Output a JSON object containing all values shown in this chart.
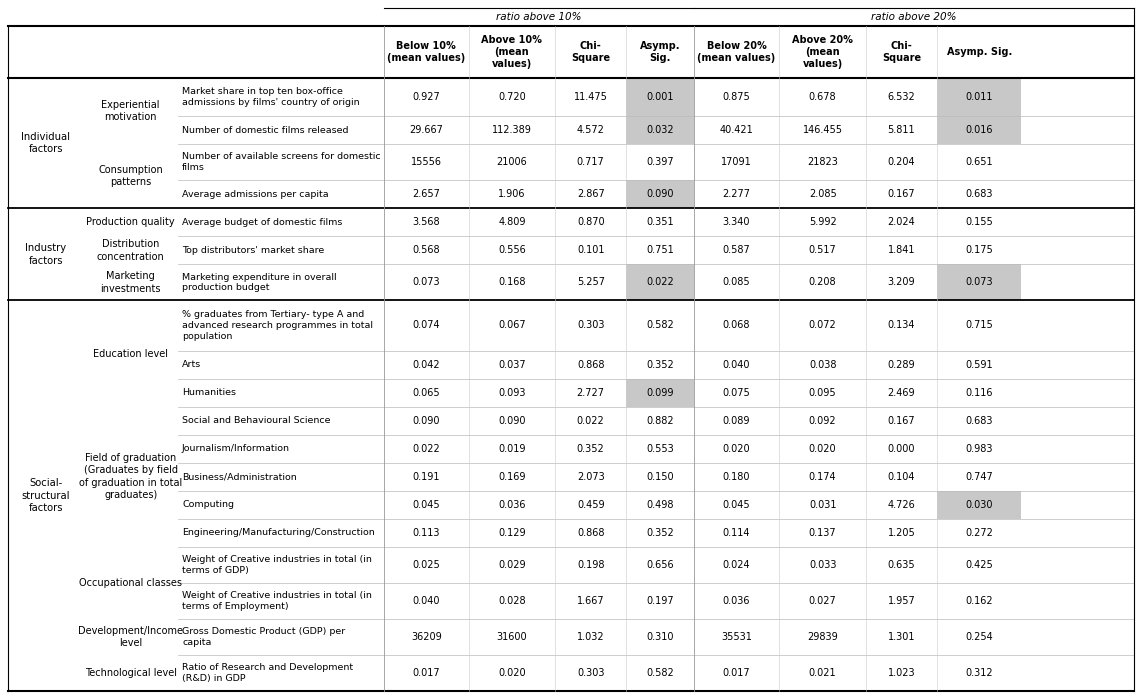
{
  "col_headers": [
    "Below 10%\n(mean values)",
    "Above 10%\n(mean\nvalues)",
    "Chi-\nSquare",
    "Asymp.\nSig.",
    "Below 20%\n(mean values)",
    "Above 20%\n(mean\nvalues)",
    "Chi-\nSquare",
    "Asymp. Sig."
  ],
  "rows": [
    {
      "factor": "Individual\nfactors",
      "sub_factor": "Experiential\nmotivation",
      "description": "Market share in top ten box-office\nadmissions by films' country of origin",
      "values": [
        "0.927",
        "0.720",
        "11.475",
        "0.001",
        "0.875",
        "0.678",
        "6.532",
        "0.011"
      ],
      "highlight": [
        3,
        7
      ],
      "thick_top": true
    },
    {
      "factor": "",
      "sub_factor": "",
      "description": "Number of domestic films released",
      "values": [
        "29.667",
        "112.389",
        "4.572",
        "0.032",
        "40.421",
        "146.455",
        "5.811",
        "0.016"
      ],
      "highlight": [
        3,
        7
      ],
      "thick_top": false
    },
    {
      "factor": "",
      "sub_factor": "Consumption\npatterns",
      "description": "Number of available screens for domestic\nfilms",
      "values": [
        "15556",
        "21006",
        "0.717",
        "0.397",
        "17091",
        "21823",
        "0.204",
        "0.651"
      ],
      "highlight": [],
      "thick_top": false
    },
    {
      "factor": "",
      "sub_factor": "",
      "description": "Average admissions per capita",
      "values": [
        "2.657",
        "1.906",
        "2.867",
        "0.090",
        "2.277",
        "2.085",
        "0.167",
        "0.683"
      ],
      "highlight": [
        3
      ],
      "thick_top": false
    },
    {
      "factor": "Industry\nfactors",
      "sub_factor": "Production quality",
      "description": "Average budget of domestic films",
      "values": [
        "3.568",
        "4.809",
        "0.870",
        "0.351",
        "3.340",
        "5.992",
        "2.024",
        "0.155"
      ],
      "highlight": [],
      "thick_top": true
    },
    {
      "factor": "",
      "sub_factor": "Distribution\nconcentration",
      "description": "Top distributors' market share",
      "values": [
        "0.568",
        "0.556",
        "0.101",
        "0.751",
        "0.587",
        "0.517",
        "1.841",
        "0.175"
      ],
      "highlight": [],
      "thick_top": false
    },
    {
      "factor": "",
      "sub_factor": "Marketing\ninvestments",
      "description": "Marketing expenditure in overall\nproduction budget",
      "values": [
        "0.073",
        "0.168",
        "5.257",
        "0.022",
        "0.085",
        "0.208",
        "3.209",
        "0.073"
      ],
      "highlight": [
        3,
        7
      ],
      "thick_top": false
    },
    {
      "factor": "Social-\nstructural\nfactors",
      "sub_factor": "Education level",
      "description": "% graduates from Tertiary- type A and\nadvanced research programmes in total\npopulation",
      "values": [
        "0.074",
        "0.067",
        "0.303",
        "0.582",
        "0.068",
        "0.072",
        "0.134",
        "0.715"
      ],
      "highlight": [],
      "thick_top": true
    },
    {
      "factor": "",
      "sub_factor": "",
      "description": "Arts",
      "values": [
        "0.042",
        "0.037",
        "0.868",
        "0.352",
        "0.040",
        "0.038",
        "0.289",
        "0.591"
      ],
      "highlight": [],
      "thick_top": false
    },
    {
      "factor": "",
      "sub_factor": "",
      "description": "Humanities",
      "values": [
        "0.065",
        "0.093",
        "2.727",
        "0.099",
        "0.075",
        "0.095",
        "2.469",
        "0.116"
      ],
      "highlight": [
        3
      ],
      "thick_top": false
    },
    {
      "factor": "",
      "sub_factor": "Field of graduation\n(Graduates by field\nof graduation in total\ngraduates)",
      "description": "Social and Behavioural Science",
      "values": [
        "0.090",
        "0.090",
        "0.022",
        "0.882",
        "0.089",
        "0.092",
        "0.167",
        "0.683"
      ],
      "highlight": [],
      "thick_top": false
    },
    {
      "factor": "",
      "sub_factor": "",
      "description": "Journalism/Information",
      "values": [
        "0.022",
        "0.019",
        "0.352",
        "0.553",
        "0.020",
        "0.020",
        "0.000",
        "0.983"
      ],
      "highlight": [],
      "thick_top": false
    },
    {
      "factor": "",
      "sub_factor": "",
      "description": "Business/Administration",
      "values": [
        "0.191",
        "0.169",
        "2.073",
        "0.150",
        "0.180",
        "0.174",
        "0.104",
        "0.747"
      ],
      "highlight": [],
      "thick_top": false
    },
    {
      "factor": "",
      "sub_factor": "",
      "description": "Computing",
      "values": [
        "0.045",
        "0.036",
        "0.459",
        "0.498",
        "0.045",
        "0.031",
        "4.726",
        "0.030"
      ],
      "highlight": [
        7
      ],
      "thick_top": false
    },
    {
      "factor": "",
      "sub_factor": "",
      "description": "Engineering/Manufacturing/Construction",
      "values": [
        "0.113",
        "0.129",
        "0.868",
        "0.352",
        "0.114",
        "0.137",
        "1.205",
        "0.272"
      ],
      "highlight": [],
      "thick_top": false
    },
    {
      "factor": "",
      "sub_factor": "Occupational classes",
      "description": "Weight of Creative industries in total (in\nterms of GDP)",
      "values": [
        "0.025",
        "0.029",
        "0.198",
        "0.656",
        "0.024",
        "0.033",
        "0.635",
        "0.425"
      ],
      "highlight": [],
      "thick_top": false
    },
    {
      "factor": "",
      "sub_factor": "",
      "description": "Weight of Creative industries in total (in\nterms of Employment)",
      "values": [
        "0.040",
        "0.028",
        "1.667",
        "0.197",
        "0.036",
        "0.027",
        "1.957",
        "0.162"
      ],
      "highlight": [],
      "thick_top": false
    },
    {
      "factor": "",
      "sub_factor": "Development/Income\nlevel",
      "description": "Gross Domestic Product (GDP) per\ncapita",
      "values": [
        "36209",
        "31600",
        "1.032",
        "0.310",
        "35531",
        "29839",
        "1.301",
        "0.254"
      ],
      "highlight": [],
      "thick_top": false
    },
    {
      "factor": "",
      "sub_factor": "Technological level",
      "description": "Ratio of Research and Development\n(R&D) in GDP",
      "values": [
        "0.017",
        "0.020",
        "0.303",
        "0.582",
        "0.017",
        "0.021",
        "1.023",
        "0.312"
      ],
      "highlight": [],
      "thick_top": false
    }
  ],
  "highlight_color": "#c8c8c8",
  "font_size": 7.0
}
